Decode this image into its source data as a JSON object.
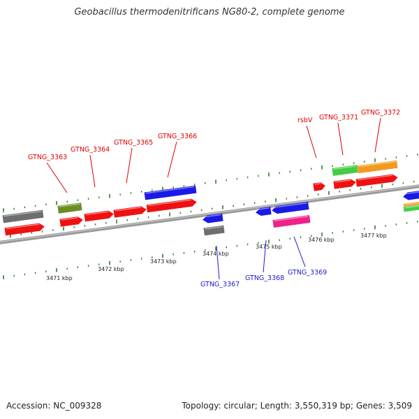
{
  "title": "Geobacillus thermodenitrificans NG80-2, complete genome",
  "footer": {
    "accession": "Accession: NC_009328",
    "summary": "Topology: circular; Length: 3,550,319 bp; Genes: 3,509"
  },
  "colors": {
    "backbone": "#8c8c8c",
    "tick": "#2a7a2a",
    "label_top": "#e00000",
    "label_bottom": "#1a1acc",
    "red": "#ee1111",
    "blue": "#1a1ae6",
    "gray": "#6e6e6e",
    "olive": "#6b8e23",
    "green": "#44cc44",
    "orange": "#f39a1e",
    "pink": "#ee2288"
  },
  "scale_labels": [
    "3471 kbp",
    "3472 kbp",
    "3473 kbp",
    "3474 kbp",
    "3475 kbp",
    "3476 kbp",
    "3477 kbp"
  ],
  "top_labels": [
    "GTNG_3363",
    "GTNG_3364",
    "GTNG_3365",
    "GTNG_3366",
    "rsbV",
    "GTNG_3371",
    "GTNG_3372"
  ],
  "bottom_labels": [
    "GTNG_3367",
    "GTNG_3368",
    "GTNG_3369"
  ]
}
